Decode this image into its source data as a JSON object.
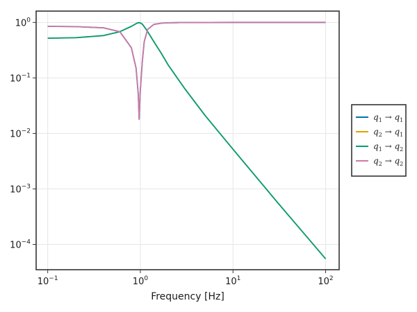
{
  "chart_data": {
    "type": "line",
    "title": "",
    "xlabel": "Frequency [Hz]",
    "ylabel": "",
    "x_scale": "log",
    "y_scale": "log",
    "xlim": [
      0.075,
      140
    ],
    "ylim": [
      3.5e-05,
      1.6
    ],
    "x_ticks": [
      0.1,
      1,
      10,
      100
    ],
    "x_tick_labels": [
      [
        "10",
        "−1"
      ],
      [
        "10",
        "0"
      ],
      [
        "10",
        "1"
      ],
      [
        "10",
        "2"
      ]
    ],
    "y_ticks": [
      1,
      0.1,
      0.01,
      0.001,
      0.0001
    ],
    "y_tick_labels": [
      [
        "10",
        "0"
      ],
      [
        "10",
        "−1"
      ],
      [
        "10",
        "−2"
      ],
      [
        "10",
        "−3"
      ],
      [
        "10",
        "−4"
      ]
    ],
    "grid": true,
    "legend_position": "right",
    "series": [
      {
        "name": "q1 → q1",
        "color": "#0072b2",
        "x": [
          0.1,
          0.2,
          0.4,
          0.6,
          0.8,
          0.9,
          0.95,
          0.97,
          1.0,
          1.05,
          1.1,
          1.2,
          1.4,
          1.7,
          2.0,
          3.0,
          10,
          100
        ],
        "y": [
          0.85,
          0.84,
          0.8,
          0.68,
          0.35,
          0.15,
          0.05,
          0.018,
          0.06,
          0.2,
          0.45,
          0.75,
          0.92,
          0.97,
          0.985,
          0.995,
          1.0,
          1.0
        ]
      },
      {
        "name": "q2 → q1",
        "color": "#e69f00",
        "x": [
          0.1,
          0.2,
          0.4,
          0.6,
          0.8,
          0.9,
          0.95,
          1.0,
          1.05,
          1.1,
          1.2,
          1.4,
          1.7,
          2.0,
          3.0,
          5.0,
          10,
          30,
          100
        ],
        "y": [
          0.52,
          0.53,
          0.58,
          0.68,
          0.85,
          0.95,
          0.99,
          0.98,
          0.93,
          0.84,
          0.68,
          0.45,
          0.27,
          0.17,
          0.065,
          0.021,
          0.0052,
          0.00058,
          5.5e-05
        ]
      },
      {
        "name": "q1 → q2",
        "color": "#009e73",
        "x": [
          0.1,
          0.2,
          0.4,
          0.6,
          0.8,
          0.9,
          0.95,
          1.0,
          1.05,
          1.1,
          1.2,
          1.4,
          1.7,
          2.0,
          3.0,
          5.0,
          10,
          30,
          100
        ],
        "y": [
          0.52,
          0.53,
          0.58,
          0.68,
          0.85,
          0.95,
          0.99,
          0.98,
          0.93,
          0.84,
          0.68,
          0.45,
          0.27,
          0.17,
          0.065,
          0.021,
          0.0052,
          0.00058,
          5.5e-05
        ]
      },
      {
        "name": "q2 → q2",
        "color": "#cc79a7",
        "x": [
          0.1,
          0.2,
          0.4,
          0.6,
          0.8,
          0.9,
          0.95,
          0.97,
          1.0,
          1.05,
          1.1,
          1.2,
          1.4,
          1.7,
          2.0,
          3.0,
          10,
          100
        ],
        "y": [
          0.85,
          0.84,
          0.8,
          0.68,
          0.35,
          0.15,
          0.05,
          0.018,
          0.06,
          0.2,
          0.45,
          0.75,
          0.92,
          0.97,
          0.985,
          0.995,
          1.0,
          1.0
        ]
      }
    ],
    "legend": [
      {
        "from": "q",
        "from_sub": "1",
        "to": "q",
        "to_sub": "1",
        "arrow": "→"
      },
      {
        "from": "q",
        "from_sub": "2",
        "to": "q",
        "to_sub": "1",
        "arrow": "→"
      },
      {
        "from": "q",
        "from_sub": "1",
        "to": "q",
        "to_sub": "2",
        "arrow": "→"
      },
      {
        "from": "q",
        "from_sub": "2",
        "to": "q",
        "to_sub": "2",
        "arrow": "→"
      }
    ]
  }
}
